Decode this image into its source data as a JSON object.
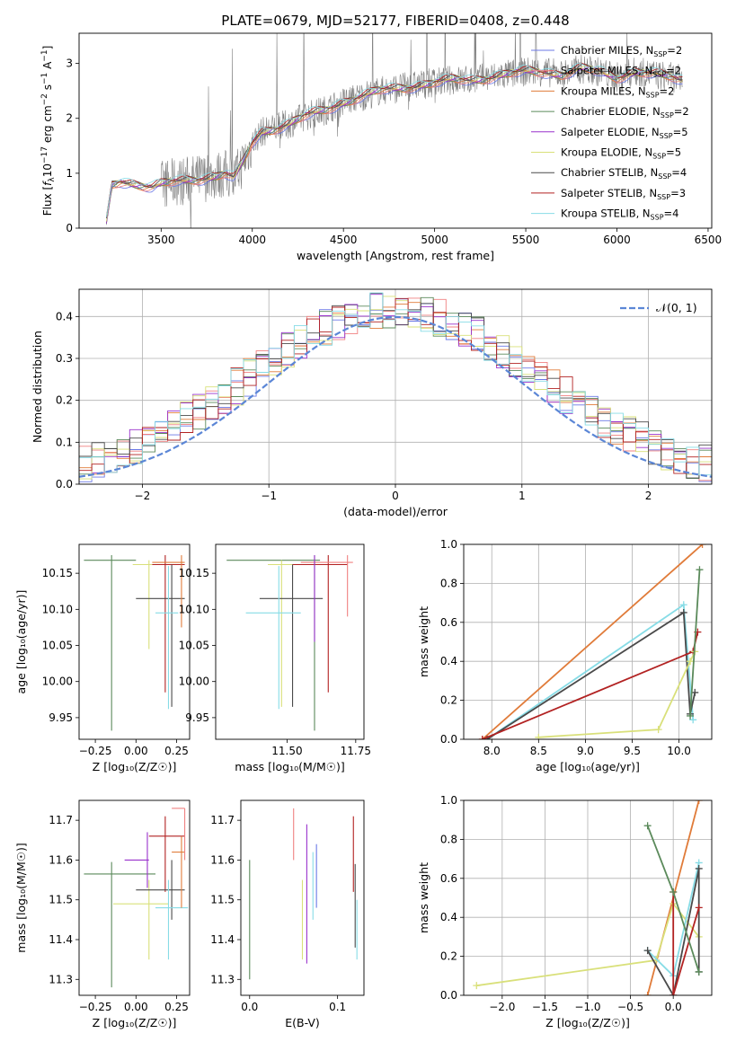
{
  "colors": {
    "chabrier_miles": "#6b78e6",
    "salpeter_miles": "#f08080",
    "kroupa_miles": "#e07b39",
    "chabrier_elodie": "#5b8a5b",
    "salpeter_elodie": "#9932cc",
    "kroupa_elodie": "#d9e07a",
    "chabrier_stelib": "#4a4a4a",
    "salpeter_stelib": "#b22222",
    "kroupa_stelib": "#87dce6",
    "gaussian": "#5b86d6",
    "data": "#808080"
  },
  "chart_data": [
    {
      "id": "spectrum",
      "type": "line",
      "title": "PLATE=0679, MJD=52177, FIBERID=0408, z=0.448",
      "xlabel": "wavelength [Angstrom, rest frame]",
      "ylabel_parts": [
        "Flux [",
        "f",
        "λ",
        "10",
        "−17",
        " erg cm",
        "−2",
        " s",
        "−1",
        " A",
        "−1",
        "]"
      ],
      "xlim": [
        3050,
        6520
      ],
      "ylim": [
        0,
        3.55
      ],
      "xticks": [
        "3500",
        "4000",
        "4500",
        "5000",
        "5500",
        "6000",
        "6500"
      ],
      "xtick_values": [
        3500,
        4000,
        4500,
        5000,
        5500,
        6000,
        6500
      ],
      "yticks": [
        "0",
        "1",
        "2",
        "3"
      ],
      "ytick_values": [
        0,
        1,
        2,
        3
      ],
      "legend_position": "top-right",
      "legend": [
        {
          "pre": "Chabrier MILES, N",
          "sub": "SSP",
          "post": "=2",
          "color": "#6b78e6"
        },
        {
          "pre": "Salpeter MILES, N",
          "sub": "SSP",
          "post": "=2",
          "color": "#f08080"
        },
        {
          "pre": "Kroupa MILES, N",
          "sub": "SSP",
          "post": "=2",
          "color": "#e07b39"
        },
        {
          "pre": "Chabrier ELODIE, N",
          "sub": "SSP",
          "post": "=2",
          "color": "#5b8a5b"
        },
        {
          "pre": "Salpeter ELODIE, N",
          "sub": "SSP",
          "post": "=5",
          "color": "#9932cc"
        },
        {
          "pre": "Kroupa ELODIE, N",
          "sub": "SSP",
          "post": "=5",
          "color": "#d9e07a"
        },
        {
          "pre": "Chabrier STELIB, N",
          "sub": "SSP",
          "post": "=4",
          "color": "#4a4a4a"
        },
        {
          "pre": "Salpeter STELIB, N",
          "sub": "SSP",
          "post": "=3",
          "color": "#b22222"
        },
        {
          "pre": "Kroupa STELIB, N",
          "sub": "SSP",
          "post": "=4",
          "color": "#87dce6"
        }
      ],
      "model_continuum": [
        [
          3200,
          0.1
        ],
        [
          3230,
          0.78
        ],
        [
          3280,
          0.85
        ],
        [
          3350,
          0.82
        ],
        [
          3450,
          0.75
        ],
        [
          3500,
          0.8
        ],
        [
          3600,
          0.85
        ],
        [
          3700,
          0.9
        ],
        [
          3800,
          0.95
        ],
        [
          3850,
          1.0
        ],
        [
          3900,
          0.9
        ],
        [
          3950,
          1.2
        ],
        [
          4000,
          1.55
        ],
        [
          4050,
          1.75
        ],
        [
          4100,
          1.8
        ],
        [
          4200,
          1.9
        ],
        [
          4300,
          2.05
        ],
        [
          4400,
          2.15
        ],
        [
          4500,
          2.3
        ],
        [
          4600,
          2.4
        ],
        [
          4700,
          2.5
        ],
        [
          4800,
          2.55
        ],
        [
          4900,
          2.6
        ],
        [
          5000,
          2.65
        ],
        [
          5100,
          2.7
        ],
        [
          5200,
          2.7
        ],
        [
          5300,
          2.75
        ],
        [
          5400,
          2.8
        ],
        [
          5500,
          2.85
        ],
        [
          5600,
          2.85
        ],
        [
          5700,
          2.8
        ],
        [
          5800,
          2.9
        ],
        [
          5900,
          2.85
        ],
        [
          6000,
          2.75
        ],
        [
          6100,
          2.85
        ],
        [
          6200,
          2.8
        ],
        [
          6300,
          2.75
        ],
        [
          6360,
          2.7
        ]
      ],
      "data_noise_start": 3500,
      "data_noise_end": 6360
    },
    {
      "id": "residuals",
      "type": "bar",
      "xlabel": "(data-model)/error",
      "ylabel": "Normed distribution",
      "xlim": [
        -2.5,
        2.5
      ],
      "ylim": [
        0,
        0.465
      ],
      "xticks": [
        "−2",
        "−1",
        "0",
        "1",
        "2"
      ],
      "xtick_values": [
        -2,
        -1,
        0,
        1,
        2
      ],
      "yticks": [
        "0.0",
        "0.1",
        "0.2",
        "0.3",
        "0.4"
      ],
      "ytick_values": [
        0,
        0.1,
        0.2,
        0.3,
        0.4
      ],
      "grid": true,
      "legend_position": "top-right",
      "legend_label": "𝒩(0, 1)",
      "bin_width": 0.1
    },
    {
      "id": "age_vs_Z",
      "type": "scatter",
      "xlabel": "Z [log₁₀(Z/Z☉)]",
      "ylabel": "age  [log₁₀(age/yr)]",
      "xlim": [
        -0.35,
        0.33
      ],
      "ylim": [
        9.92,
        10.19
      ],
      "xticks": [
        "−0.25",
        "0.00",
        "0.25"
      ],
      "xtick_values": [
        -0.25,
        0,
        0.25
      ],
      "yticks": [
        "9.95",
        "10.00",
        "10.05",
        "10.10",
        "10.15"
      ],
      "ytick_values": [
        9.95,
        10.0,
        10.05,
        10.1,
        10.15
      ],
      "points": [
        {
          "x": -0.15,
          "y": 10.168,
          "x0": -0.32,
          "x1": 0.0,
          "y0": 9.932,
          "y1": 10.175,
          "color": "#5b8a5b"
        },
        {
          "x": 0.08,
          "y": 10.162,
          "x0": -0.02,
          "x1": 0.13,
          "y0": 10.045,
          "y1": 10.168,
          "color": "#d9e07a"
        },
        {
          "x": 0.18,
          "y": 10.162,
          "x0": 0.1,
          "x1": 0.3,
          "y0": 9.985,
          "y1": 10.175,
          "color": "#b22222"
        },
        {
          "x": 0.22,
          "y": 10.115,
          "x0": 0.0,
          "x1": 0.3,
          "y0": 9.965,
          "y1": 10.162,
          "color": "#4a4a4a"
        },
        {
          "x": 0.2,
          "y": 10.095,
          "x0": 0.12,
          "x1": 0.26,
          "y0": 9.962,
          "y1": 10.16,
          "color": "#87dce6"
        },
        {
          "x": 0.28,
          "y": 10.165,
          "x0": 0.1,
          "x1": 0.3,
          "y0": 10.075,
          "y1": 10.175,
          "color": "#e07b39"
        }
      ]
    },
    {
      "id": "age_vs_mass",
      "type": "scatter",
      "xlabel": "mass [log₁₀(M/M☉)]",
      "xlim": [
        11.24,
        11.78
      ],
      "ylim": [
        9.92,
        10.19
      ],
      "xticks": [
        "11.50",
        "11.75"
      ],
      "xtick_values": [
        11.5,
        11.75
      ],
      "yticks": [
        "9.95",
        "10.00",
        "10.05",
        "10.10",
        "10.15"
      ],
      "ytick_values": [
        9.95,
        10.0,
        10.05,
        10.1,
        10.15
      ],
      "points": [
        {
          "x": 11.6,
          "y": 10.168,
          "x0": 11.28,
          "x1": 11.62,
          "y0": 9.932,
          "y1": 10.175,
          "color": "#5b8a5b"
        },
        {
          "x": 11.48,
          "y": 10.162,
          "x0": 11.43,
          "x1": 11.62,
          "y0": 9.965,
          "y1": 10.168,
          "color": "#d9e07a"
        },
        {
          "x": 11.65,
          "y": 10.162,
          "x0": 11.52,
          "x1": 11.72,
          "y0": 9.985,
          "y1": 10.175,
          "color": "#b22222"
        },
        {
          "x": 11.52,
          "y": 10.115,
          "x0": 11.4,
          "x1": 11.63,
          "y0": 9.965,
          "y1": 10.162,
          "color": "#4a4a4a"
        },
        {
          "x": 11.47,
          "y": 10.095,
          "x0": 11.35,
          "x1": 11.55,
          "y0": 9.962,
          "y1": 10.16,
          "color": "#87dce6"
        },
        {
          "x": 11.72,
          "y": 10.165,
          "x0": 11.55,
          "x1": 11.74,
          "y0": 10.09,
          "y1": 10.175,
          "color": "#f08080"
        },
        {
          "x": 11.6,
          "y": 10.13,
          "x0": 11.6,
          "x1": 11.6,
          "y0": 10.055,
          "y1": 10.175,
          "color": "#9932cc"
        }
      ]
    },
    {
      "id": "weight_vs_age",
      "type": "line",
      "xlabel": "age  [log₁₀(age/yr)]",
      "ylabel": "mass weight",
      "xlim": [
        7.7,
        10.35
      ],
      "ylim": [
        0,
        1.0
      ],
      "xticks": [
        "8.0",
        "8.5",
        "9.0",
        "9.5",
        "10.0"
      ],
      "xtick_values": [
        8.0,
        8.5,
        9.0,
        9.5,
        10.0
      ],
      "yticks": [
        "0.0",
        "0.2",
        "0.4",
        "0.6",
        "0.8",
        "1.0"
      ],
      "ytick_values": [
        0,
        0.2,
        0.4,
        0.6,
        0.8,
        1.0
      ],
      "grid": true,
      "series": [
        {
          "color": "#e07b39",
          "points": [
            [
              7.9,
              0.0
            ],
            [
              10.25,
              1.0
            ]
          ]
        },
        {
          "color": "#87dce6",
          "points": [
            [
              7.95,
              0.0
            ],
            [
              10.05,
              0.69
            ],
            [
              10.15,
              0.1
            ]
          ]
        },
        {
          "color": "#4a4a4a",
          "points": [
            [
              7.95,
              0.0
            ],
            [
              10.05,
              0.65
            ],
            [
              10.12,
              0.13
            ],
            [
              10.17,
              0.24
            ]
          ]
        },
        {
          "color": "#b22222",
          "points": [
            [
              7.9,
              0.0
            ],
            [
              10.15,
              0.45
            ],
            [
              10.2,
              0.55
            ]
          ]
        },
        {
          "color": "#d9e07a",
          "points": [
            [
              8.5,
              0.01
            ],
            [
              9.78,
              0.05
            ],
            [
              10.12,
              0.4
            ],
            [
              10.17,
              0.45
            ]
          ]
        },
        {
          "color": "#5b8a5b",
          "points": [
            [
              10.12,
              0.12
            ],
            [
              10.22,
              0.87
            ]
          ]
        }
      ]
    },
    {
      "id": "mass_vs_Z",
      "type": "scatter",
      "xlabel": "Z [log₁₀(Z/Z☉)]",
      "ylabel": "mass [log₁₀(M/M☉)]",
      "xlim": [
        -0.35,
        0.33
      ],
      "ylim": [
        11.26,
        11.75
      ],
      "xticks": [
        "−0.25",
        "0.00",
        "0.25"
      ],
      "xtick_values": [
        -0.25,
        0,
        0.25
      ],
      "yticks": [
        "11.3",
        "11.4",
        "11.5",
        "11.6",
        "11.7"
      ],
      "ytick_values": [
        11.3,
        11.4,
        11.5,
        11.6,
        11.7
      ],
      "points": [
        {
          "x": -0.15,
          "y": 11.565,
          "x0": -0.32,
          "x1": 0.12,
          "y0": 11.28,
          "y1": 11.595,
          "color": "#5b8a5b"
        },
        {
          "x": 0.08,
          "y": 11.49,
          "x0": -0.14,
          "x1": 0.2,
          "y0": 11.35,
          "y1": 11.55,
          "color": "#d9e07a"
        },
        {
          "x": 0.18,
          "y": 11.66,
          "x0": 0.08,
          "x1": 0.3,
          "y0": 11.52,
          "y1": 11.71,
          "color": "#b22222"
        },
        {
          "x": 0.22,
          "y": 11.525,
          "x0": 0.0,
          "x1": 0.3,
          "y0": 11.45,
          "y1": 11.6,
          "color": "#4a4a4a"
        },
        {
          "x": 0.2,
          "y": 11.48,
          "x0": 0.12,
          "x1": 0.32,
          "y0": 11.35,
          "y1": 11.55,
          "color": "#87dce6"
        },
        {
          "x": 0.07,
          "y": 11.6,
          "x0": -0.07,
          "x1": 0.08,
          "y0": 11.53,
          "y1": 11.67,
          "color": "#9932cc"
        },
        {
          "x": 0.28,
          "y": 11.62,
          "x0": 0.22,
          "x1": 0.3,
          "y0": 11.48,
          "y1": 11.66,
          "color": "#e07b39"
        },
        {
          "x": 0.3,
          "y": 11.73,
          "x0": 0.22,
          "x1": 0.3,
          "y0": 11.6,
          "y1": 11.73,
          "color": "#f08080"
        }
      ]
    },
    {
      "id": "mass_vs_ebv",
      "type": "scatter",
      "xlabel": "E(B-V)",
      "xlim": [
        -0.01,
        0.13
      ],
      "ylim": [
        11.26,
        11.75
      ],
      "xticks": [
        "0.0",
        "0.1"
      ],
      "xtick_values": [
        0.0,
        0.1
      ],
      "yticks": [
        "11.3",
        "11.4",
        "11.5",
        "11.6",
        "11.7"
      ],
      "ytick_values": [
        11.3,
        11.4,
        11.5,
        11.6,
        11.7
      ],
      "points": [
        {
          "x": 0.0,
          "y": 11.45,
          "y0": 11.3,
          "y1": 11.6,
          "color": "#5b8a5b"
        },
        {
          "x": 0.05,
          "y": 11.65,
          "y0": 11.6,
          "y1": 11.73,
          "color": "#f08080"
        },
        {
          "x": 0.06,
          "y": 11.45,
          "y0": 11.35,
          "y1": 11.55,
          "color": "#d9e07a"
        },
        {
          "x": 0.065,
          "y": 11.6,
          "y0": 11.34,
          "y1": 11.69,
          "color": "#9932cc"
        },
        {
          "x": 0.072,
          "y": 11.55,
          "y0": 11.45,
          "y1": 11.62,
          "color": "#87dce6"
        },
        {
          "x": 0.076,
          "y": 11.58,
          "y0": 11.48,
          "y1": 11.64,
          "color": "#6b78e6"
        },
        {
          "x": 0.118,
          "y": 11.6,
          "y0": 11.52,
          "y1": 11.71,
          "color": "#b22222"
        },
        {
          "x": 0.12,
          "y": 11.5,
          "y0": 11.38,
          "y1": 11.59,
          "color": "#4a4a4a"
        },
        {
          "x": 0.122,
          "y": 11.45,
          "y0": 11.35,
          "y1": 11.5,
          "color": "#87dce6"
        }
      ]
    },
    {
      "id": "weight_vs_Z",
      "type": "line",
      "xlabel": "Z [log₁₀(Z/Z☉)]",
      "ylabel": "mass weight",
      "xlim": [
        -2.45,
        0.45
      ],
      "ylim": [
        0,
        1.0
      ],
      "xticks": [
        "−2.0",
        "−1.5",
        "−1.0",
        "−0.5",
        "0.0"
      ],
      "xtick_values": [
        -2.0,
        -1.5,
        -1.0,
        -0.5,
        0.0
      ],
      "yticks": [
        "0.0",
        "0.2",
        "0.4",
        "0.6",
        "0.8",
        "1.0"
      ],
      "ytick_values": [
        0,
        0.2,
        0.4,
        0.6,
        0.8,
        1.0
      ],
      "grid": true,
      "series": [
        {
          "color": "#e07b39",
          "points": [
            [
              -0.3,
              0.0
            ],
            [
              0.3,
              1.0
            ]
          ]
        },
        {
          "color": "#d9e07a",
          "points": [
            [
              -2.3,
              0.05
            ],
            [
              -0.2,
              0.18
            ],
            [
              0.0,
              0.47
            ],
            [
              0.3,
              0.3
            ]
          ]
        },
        {
          "color": "#87dce6",
          "points": [
            [
              -0.3,
              0.23
            ],
            [
              0.0,
              0.1
            ],
            [
              0.3,
              0.68
            ]
          ]
        },
        {
          "color": "#4a4a4a",
          "points": [
            [
              -0.3,
              0.23
            ],
            [
              0.0,
              0.0
            ],
            [
              0.3,
              0.65
            ],
            [
              0.3,
              0.12
            ]
          ]
        },
        {
          "color": "#b22222",
          "points": [
            [
              0.0,
              0.53
            ],
            [
              0.0,
              0.0
            ],
            [
              0.3,
              0.45
            ]
          ]
        },
        {
          "color": "#5b8a5b",
          "points": [
            [
              -0.3,
              0.87
            ],
            [
              0.0,
              0.53
            ],
            [
              0.3,
              0.12
            ]
          ]
        }
      ]
    }
  ]
}
